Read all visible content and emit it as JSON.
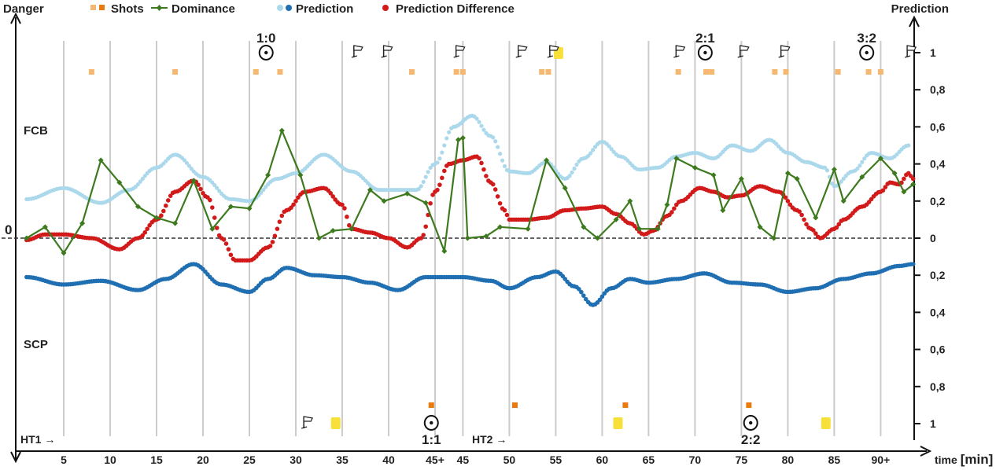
{
  "chart_data": {
    "type": "line",
    "title": "",
    "labels": {
      "left_axis": "Danger",
      "right_axis": "Prediction",
      "zero": "0",
      "top_team": "FCB",
      "bottom_team": "SCP",
      "half1": "HT1 →",
      "half2": "HT2 →",
      "xlabel_prefix": "time ",
      "xlabel_unit": "[min]"
    },
    "legend": [
      {
        "key": "shots",
        "label": "Shots"
      },
      {
        "key": "dominance",
        "label": "Dominance"
      },
      {
        "key": "prediction",
        "label": "Prediction"
      },
      {
        "key": "prediction_difference",
        "label": "Prediction Difference"
      }
    ],
    "colors": {
      "dominance": "#3d7a1e",
      "prediction_top": "#acd8ec",
      "prediction_bottom": "#1f6fb2",
      "prediction_difference": "#d21a1a",
      "shot_light": "#f5b870",
      "shot_dark": "#e87a10",
      "card": "#f7e03a",
      "grid": "#cccccc",
      "axis": "#111111"
    },
    "x_ticks": [
      {
        "p": 5,
        "label": "5"
      },
      {
        "p": 10,
        "label": "10"
      },
      {
        "p": 15,
        "label": "15"
      },
      {
        "p": 20,
        "label": "20"
      },
      {
        "p": 25,
        "label": "25"
      },
      {
        "p": 30,
        "label": "30"
      },
      {
        "p": 35,
        "label": "35"
      },
      {
        "p": 40,
        "label": "40"
      },
      {
        "p": 45,
        "label": "45+"
      },
      {
        "p": 48,
        "label": "45"
      },
      {
        "p": 53,
        "label": "50"
      },
      {
        "p": 58,
        "label": "55"
      },
      {
        "p": 63,
        "label": "60"
      },
      {
        "p": 68,
        "label": "65"
      },
      {
        "p": 73,
        "label": "70"
      },
      {
        "p": 78,
        "label": "75"
      },
      {
        "p": 83,
        "label": "80"
      },
      {
        "p": 88,
        "label": "85"
      },
      {
        "p": 93,
        "label": "90+"
      }
    ],
    "y_ticks": [
      {
        "v": 1,
        "label": "1"
      },
      {
        "v": 0.8,
        "label": "0,8"
      },
      {
        "v": 0.6,
        "label": "0,6"
      },
      {
        "v": 0.4,
        "label": "0,4"
      },
      {
        "v": 0.2,
        "label": "0,2"
      },
      {
        "v": 0,
        "label": "0"
      },
      {
        "v": -0.2,
        "label": "0,2"
      },
      {
        "v": -0.4,
        "label": "0,4"
      },
      {
        "v": -0.6,
        "label": "0,6"
      },
      {
        "v": -0.8,
        "label": "0,8"
      },
      {
        "v": -1,
        "label": "1"
      }
    ],
    "ylim": [
      -1.15,
      1.15
    ],
    "xlim": [
      0,
      96.6
    ],
    "dominance": [
      [
        1,
        0
      ],
      [
        3,
        0.06
      ],
      [
        5,
        -0.08
      ],
      [
        7,
        0.08
      ],
      [
        9,
        0.42
      ],
      [
        11,
        0.3
      ],
      [
        13,
        0.17
      ],
      [
        15,
        0.11
      ],
      [
        17,
        0.08
      ],
      [
        19,
        0.31
      ],
      [
        21,
        0.05
      ],
      [
        23,
        0.17
      ],
      [
        25,
        0.16
      ],
      [
        27,
        0.34
      ],
      [
        28.5,
        0.58
      ],
      [
        30.5,
        0.34
      ],
      [
        32.5,
        0
      ],
      [
        34,
        0.04
      ],
      [
        36,
        0.05
      ],
      [
        38,
        0.26
      ],
      [
        39.5,
        0.2
      ],
      [
        42,
        0.24
      ],
      [
        44,
        0.19
      ],
      [
        46,
        -0.07
      ],
      [
        47.5,
        0.53
      ],
      [
        48,
        0.54
      ],
      [
        48.5,
        0
      ],
      [
        50.5,
        0.01
      ],
      [
        52,
        0.06
      ],
      [
        55,
        0.05
      ],
      [
        57,
        0.42
      ],
      [
        59,
        0.27
      ],
      [
        61,
        0.06
      ],
      [
        62.5,
        0
      ],
      [
        64.5,
        0.1
      ],
      [
        66,
        0.2
      ],
      [
        67,
        0.05
      ],
      [
        69,
        0.05
      ],
      [
        70,
        0.18
      ],
      [
        71,
        0.43
      ],
      [
        73,
        0.38
      ],
      [
        75,
        0.34
      ],
      [
        76,
        0.15
      ],
      [
        78,
        0.32
      ],
      [
        80,
        0.06
      ],
      [
        81.5,
        0
      ],
      [
        83,
        0.35
      ],
      [
        84,
        0.32
      ],
      [
        86,
        0.11
      ],
      [
        88,
        0.37
      ],
      [
        89,
        0.2
      ],
      [
        91,
        0.33
      ],
      [
        93,
        0.43
      ],
      [
        94.5,
        0.35
      ],
      [
        95.5,
        0.25
      ],
      [
        96.5,
        0.29
      ]
    ],
    "prediction_top": [
      [
        1,
        0.21
      ],
      [
        5,
        0.27
      ],
      [
        9,
        0.19
      ],
      [
        12,
        0.26
      ],
      [
        15,
        0.38
      ],
      [
        17,
        0.45
      ],
      [
        20,
        0.33
      ],
      [
        23,
        0.21
      ],
      [
        25,
        0.2
      ],
      [
        28,
        0.32
      ],
      [
        30,
        0.35
      ],
      [
        33,
        0.45
      ],
      [
        36,
        0.36
      ],
      [
        39,
        0.26
      ],
      [
        43,
        0.26
      ],
      [
        45,
        0.4
      ],
      [
        47,
        0.6
      ],
      [
        49,
        0.66
      ],
      [
        51,
        0.55
      ],
      [
        53,
        0.36
      ],
      [
        55,
        0.35
      ],
      [
        57,
        0.41
      ],
      [
        59,
        0.32
      ],
      [
        61,
        0.43
      ],
      [
        63,
        0.52
      ],
      [
        65,
        0.44
      ],
      [
        67,
        0.37
      ],
      [
        69,
        0.38
      ],
      [
        71,
        0.44
      ],
      [
        73,
        0.46
      ],
      [
        75,
        0.43
      ],
      [
        77,
        0.5
      ],
      [
        79,
        0.47
      ],
      [
        81,
        0.53
      ],
      [
        83,
        0.46
      ],
      [
        85,
        0.41
      ],
      [
        87,
        0.38
      ],
      [
        88,
        0.28
      ],
      [
        90,
        0.36
      ],
      [
        92,
        0.46
      ],
      [
        94,
        0.43
      ],
      [
        96,
        0.5
      ]
    ],
    "prediction_bottom": [
      [
        1,
        -0.21
      ],
      [
        5,
        -0.25
      ],
      [
        9,
        -0.23
      ],
      [
        13,
        -0.28
      ],
      [
        16,
        -0.22
      ],
      [
        19,
        -0.14
      ],
      [
        22,
        -0.25
      ],
      [
        25,
        -0.29
      ],
      [
        27,
        -0.22
      ],
      [
        29,
        -0.16
      ],
      [
        32,
        -0.2
      ],
      [
        35,
        -0.21
      ],
      [
        38,
        -0.24
      ],
      [
        41,
        -0.28
      ],
      [
        44,
        -0.21
      ],
      [
        48,
        -0.21
      ],
      [
        51,
        -0.23
      ],
      [
        53,
        -0.27
      ],
      [
        56,
        -0.21
      ],
      [
        58,
        -0.18
      ],
      [
        60,
        -0.26
      ],
      [
        62,
        -0.36
      ],
      [
        64,
        -0.27
      ],
      [
        66,
        -0.22
      ],
      [
        68,
        -0.24
      ],
      [
        71,
        -0.22
      ],
      [
        74,
        -0.19
      ],
      [
        77,
        -0.24
      ],
      [
        80,
        -0.25
      ],
      [
        83,
        -0.29
      ],
      [
        86,
        -0.27
      ],
      [
        89,
        -0.22
      ],
      [
        92,
        -0.19
      ],
      [
        95,
        -0.15
      ],
      [
        96.5,
        -0.14
      ]
    ],
    "prediction_difference": [
      [
        1,
        -0.01
      ],
      [
        3,
        0.02
      ],
      [
        5,
        0.02
      ],
      [
        8,
        0.0
      ],
      [
        11,
        -0.06
      ],
      [
        13,
        0.0
      ],
      [
        15,
        0.1
      ],
      [
        17,
        0.25
      ],
      [
        19,
        0.31
      ],
      [
        20.5,
        0.22
      ],
      [
        22,
        0.0
      ],
      [
        23.5,
        -0.12
      ],
      [
        25,
        -0.12
      ],
      [
        27,
        -0.05
      ],
      [
        29,
        0.15
      ],
      [
        31,
        0.25
      ],
      [
        33,
        0.27
      ],
      [
        35,
        0.18
      ],
      [
        36,
        0.05
      ],
      [
        38,
        0.03
      ],
      [
        40,
        0.0
      ],
      [
        42,
        -0.05
      ],
      [
        43.5,
        0.0
      ],
      [
        45,
        0.25
      ],
      [
        46.5,
        0.4
      ],
      [
        48,
        0.42
      ],
      [
        49.5,
        0.44
      ],
      [
        51,
        0.3
      ],
      [
        52.5,
        0.15
      ],
      [
        53,
        0.1
      ],
      [
        55,
        0.1
      ],
      [
        57,
        0.11
      ],
      [
        59,
        0.15
      ],
      [
        61,
        0.16
      ],
      [
        63,
        0.17
      ],
      [
        64.5,
        0.13
      ],
      [
        66,
        0.08
      ],
      [
        67.5,
        0.02
      ],
      [
        68.5,
        0.04
      ],
      [
        70,
        0.12
      ],
      [
        71.5,
        0.2
      ],
      [
        73.5,
        0.27
      ],
      [
        75,
        0.25
      ],
      [
        76.5,
        0.22
      ],
      [
        78,
        0.23
      ],
      [
        80,
        0.28
      ],
      [
        82,
        0.25
      ],
      [
        84,
        0.15
      ],
      [
        85.5,
        0.05
      ],
      [
        86.5,
        0.0
      ],
      [
        88,
        0.05
      ],
      [
        89,
        0.1
      ],
      [
        91,
        0.17
      ],
      [
        93,
        0.25
      ],
      [
        94,
        0.3
      ],
      [
        95,
        0.29
      ],
      [
        96,
        0.35
      ],
      [
        96.5,
        0.32
      ]
    ],
    "shots_top": [
      {
        "x": 8,
        "c": "light"
      },
      {
        "x": 17,
        "c": "light"
      },
      {
        "x": 25.7,
        "c": "light"
      },
      {
        "x": 28.3,
        "c": "light"
      },
      {
        "x": 42.5,
        "c": "light"
      },
      {
        "x": 47.3,
        "c": "light"
      },
      {
        "x": 48,
        "c": "light"
      },
      {
        "x": 56.5,
        "c": "light"
      },
      {
        "x": 57.2,
        "c": "light"
      },
      {
        "x": 71.2,
        "c": "light"
      },
      {
        "x": 74.2,
        "c": "light"
      },
      {
        "x": 74.8,
        "c": "light"
      },
      {
        "x": 81.6,
        "c": "light"
      },
      {
        "x": 82.8,
        "c": "light"
      },
      {
        "x": 88.4,
        "c": "light"
      },
      {
        "x": 91.7,
        "c": "light"
      },
      {
        "x": 93,
        "c": "light"
      }
    ],
    "shots_bottom": [
      {
        "x": 44.6,
        "c": "dark"
      },
      {
        "x": 53.6,
        "c": "dark"
      },
      {
        "x": 65.5,
        "c": "dark"
      },
      {
        "x": 78.8,
        "c": "dark"
      }
    ],
    "cards_top": [
      {
        "x": 58.3
      }
    ],
    "cards_bottom": [
      {
        "x": 34.3
      },
      {
        "x": 64.7
      },
      {
        "x": 87.1
      }
    ],
    "corners_top": [
      36.6,
      39.8,
      47.6,
      54.3,
      57.7,
      71.3,
      78.2,
      82.6,
      96.2
    ],
    "corners_bottom": [
      31.2
    ],
    "goals": [
      {
        "x": 26.8,
        "team": "top",
        "label": "1:0"
      },
      {
        "x": 44.6,
        "team": "bottom",
        "label": "1:1"
      },
      {
        "x": 74.1,
        "team": "top",
        "label": "2:1"
      },
      {
        "x": 79.0,
        "team": "bottom",
        "label": "2:2"
      },
      {
        "x": 91.5,
        "team": "top",
        "label": "3:2"
      }
    ]
  }
}
